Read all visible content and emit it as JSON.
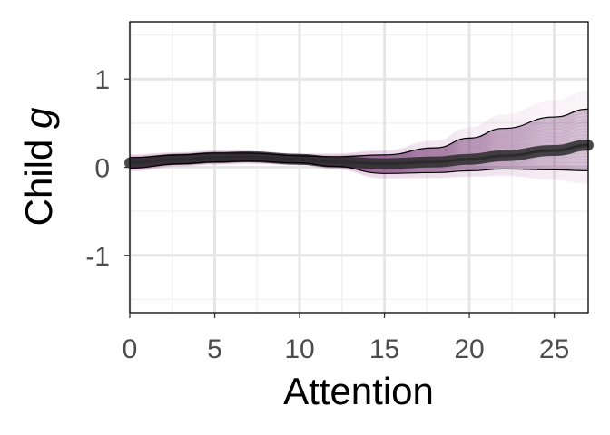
{
  "chart_data": {
    "type": "line",
    "title": "",
    "xlabel": "Attention",
    "ylabel_text": "Child ",
    "ylabel_symbol": "g",
    "xlim": [
      0,
      27
    ],
    "ylim": [
      -1.65,
      1.65
    ],
    "xticks": [
      0,
      5,
      10,
      15,
      20,
      25
    ],
    "xtick_labels": [
      "0",
      "5",
      "10",
      "15",
      "20",
      "25"
    ],
    "yticks": [
      -1,
      0,
      1
    ],
    "ytick_labels": [
      "-1",
      "0",
      "1"
    ],
    "grid": true,
    "legend": "none",
    "x": [
      0,
      3,
      5,
      7,
      10,
      12,
      15,
      18,
      20,
      22,
      25,
      27
    ],
    "series": [
      {
        "role": "mean",
        "values": [
          0.05,
          0.09,
          0.11,
          0.12,
          0.09,
          0.06,
          0.04,
          0.06,
          0.09,
          0.13,
          0.19,
          0.25
        ]
      },
      {
        "role": "interval_upper",
        "values": [
          0.11,
          0.14,
          0.16,
          0.16,
          0.13,
          0.12,
          0.14,
          0.22,
          0.33,
          0.44,
          0.57,
          0.66
        ]
      },
      {
        "role": "interval_lower",
        "values": [
          -0.01,
          0.04,
          0.06,
          0.07,
          0.05,
          0.01,
          -0.07,
          -0.06,
          -0.04,
          -0.02,
          -0.03,
          -0.04
        ]
      }
    ],
    "colors": {
      "draws": "#5a1e5c",
      "draws_edge": "#b06aa0",
      "mean_line": "#2b2b2b",
      "interval_line": "#000000",
      "grid_major": "#e6e6e6",
      "grid_minor": "#f2f2f2",
      "panel_border": "#000000"
    }
  }
}
